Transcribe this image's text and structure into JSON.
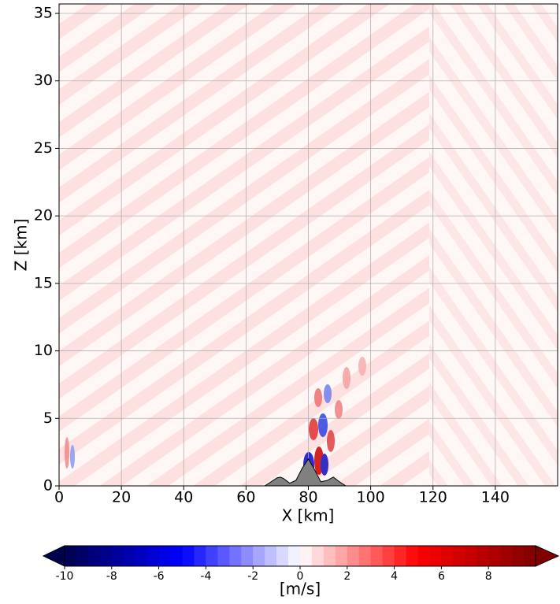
{
  "chart_data": {
    "type": "contour",
    "x_label": "X [km]",
    "y_label": "Z [km]",
    "xlim": [
      0,
      160
    ],
    "ylim": [
      0,
      35.7
    ],
    "xticks": [
      0,
      20,
      40,
      60,
      80,
      100,
      120,
      140
    ],
    "yticks": [
      0,
      5,
      10,
      15,
      20,
      25,
      30,
      35
    ],
    "grid": true,
    "terrain": {
      "color": "#808080",
      "x": [
        66,
        68,
        70,
        71,
        72,
        74,
        76,
        78,
        80,
        82,
        84,
        86,
        88,
        90,
        92
      ],
      "z": [
        0,
        0.3,
        0.6,
        0.65,
        0.55,
        0.2,
        0.4,
        1.3,
        2.0,
        1.2,
        0.3,
        0.4,
        0.65,
        0.3,
        0
      ]
    },
    "colorbar": {
      "label": "[m/s]",
      "lim": [
        -10,
        10
      ],
      "step": 0.5,
      "ticks": [
        -10,
        -8,
        -6,
        -4,
        -2,
        0,
        2,
        4,
        6,
        8
      ]
    }
  }
}
